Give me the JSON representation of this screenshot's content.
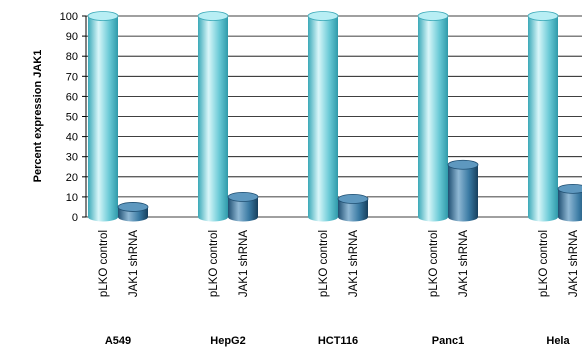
{
  "chart_data": {
    "type": "bar",
    "title": "",
    "xlabel": "",
    "ylabel": "Percent expression JAK1",
    "ylim": [
      0,
      100
    ],
    "yticks": [
      0,
      10,
      20,
      30,
      40,
      50,
      60,
      70,
      80,
      90,
      100
    ],
    "grid": true,
    "legend": "none",
    "categories": [
      "A549",
      "HepG2",
      "HCT116",
      "Panc1",
      "Hela"
    ],
    "series": [
      {
        "name": "pLKO control",
        "values": [
          100,
          100,
          100,
          100,
          100
        ],
        "color": "#5bc3d0"
      },
      {
        "name": "JAK1 shRNA",
        "values": [
          5,
          10,
          9,
          26,
          14
        ],
        "color": "#2a6a92"
      }
    ]
  }
}
